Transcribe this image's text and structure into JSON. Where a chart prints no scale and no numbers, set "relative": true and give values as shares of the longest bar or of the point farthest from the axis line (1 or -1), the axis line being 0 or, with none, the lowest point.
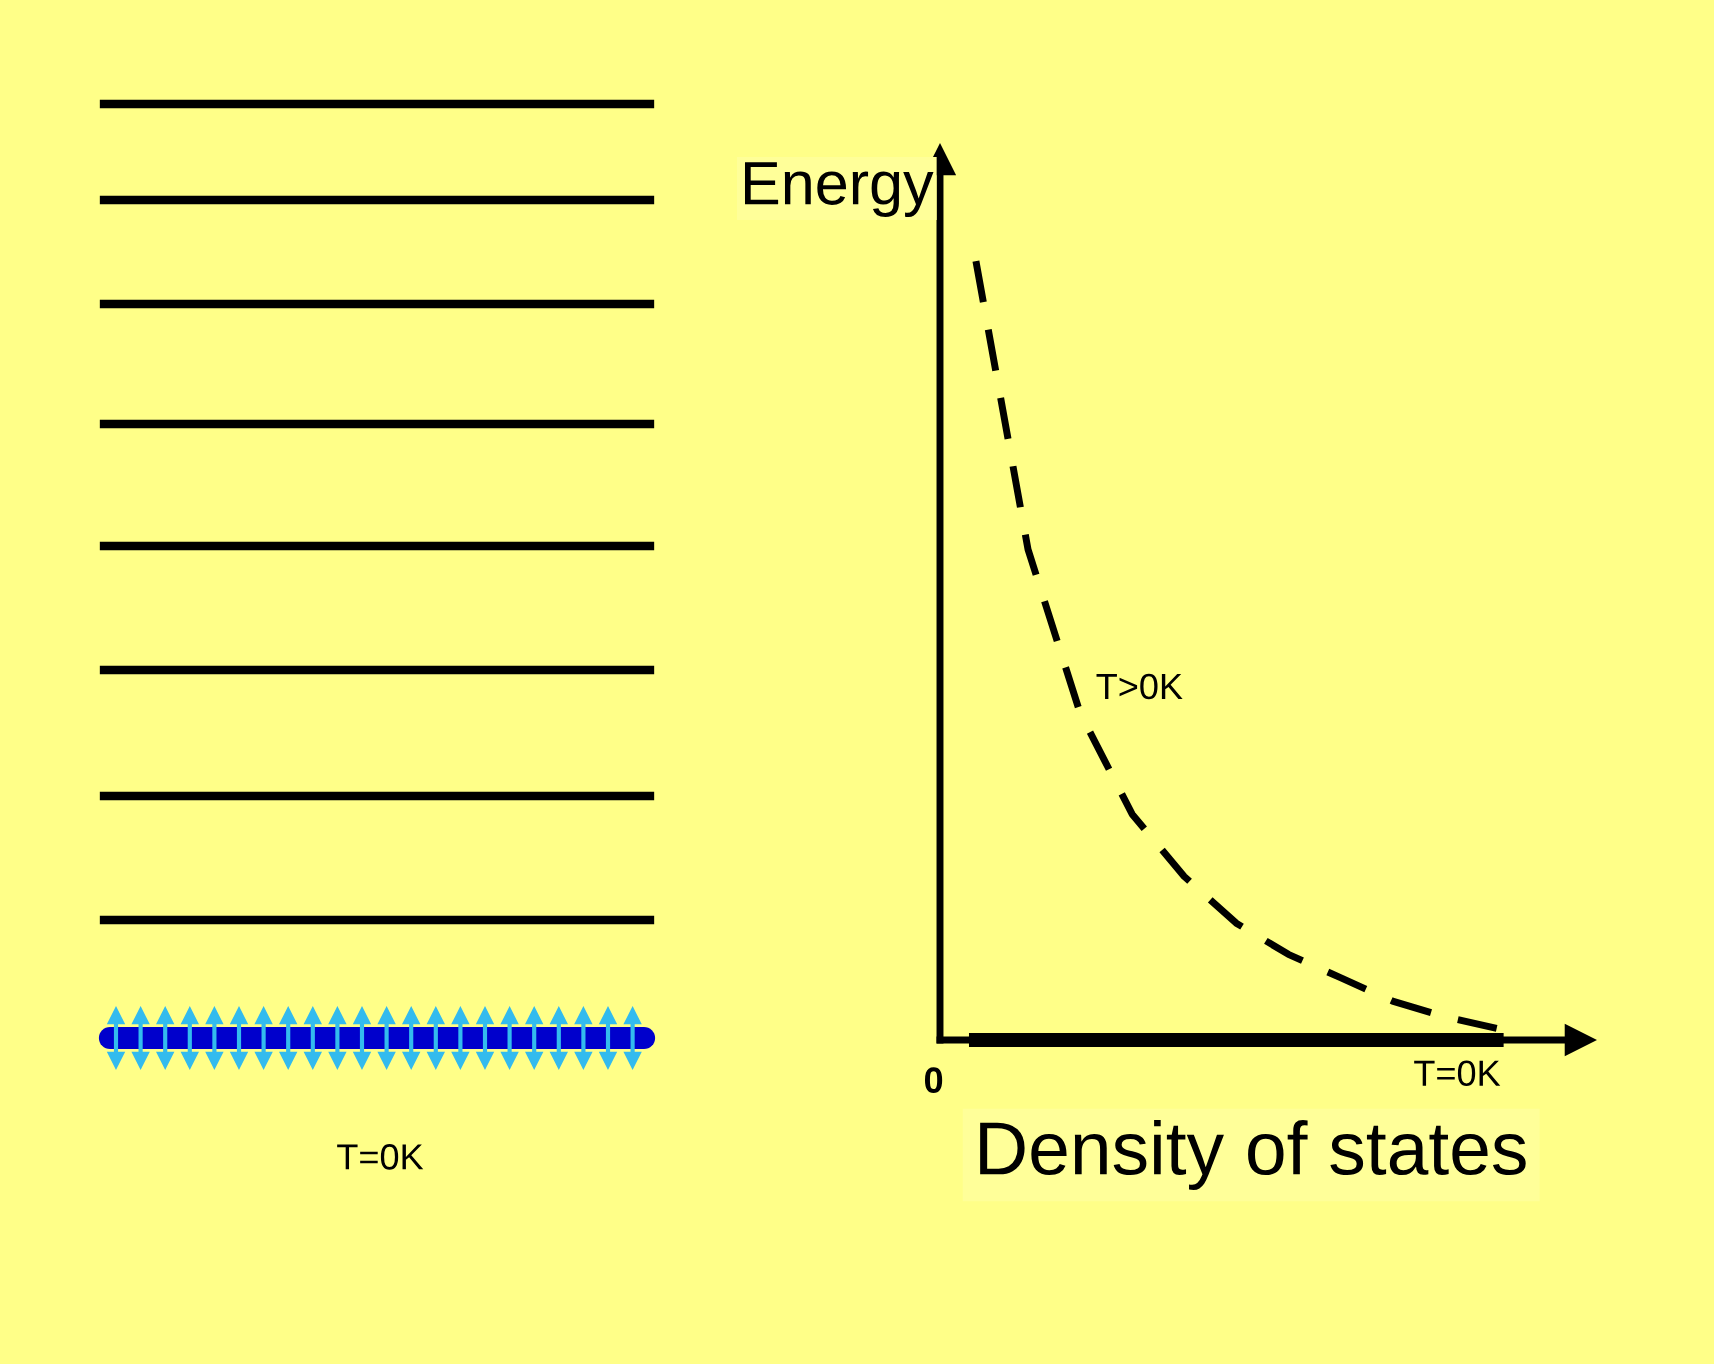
{
  "chart_data": [
    {
      "type": "other",
      "annotations": [
        "T=0K"
      ]
    },
    {
      "type": "line",
      "relative": true,
      "ylabel": "Energy",
      "xlabel": "Density of states",
      "legend": false,
      "categories": [
        null,
        null,
        null,
        null,
        null,
        null,
        null,
        null,
        null,
        null,
        null
      ],
      "series": [
        {
          "name": "T>0K",
          "color": "#000000",
          "line_style": "dashed",
          "values": [
            1,
            0.63,
            0.42,
            0.29,
            0.21,
            0.15,
            0.11,
            0.08,
            0.05,
            0.03,
            0.015
          ]
        },
        {
          "name": "T=0K",
          "color": "#000000",
          "line_style": "solid",
          "values": [
            0,
            0,
            0,
            0,
            0,
            0,
            0,
            0,
            0,
            0,
            0
          ]
        }
      ],
      "annotations": [
        "0"
      ]
    }
  ]
}
